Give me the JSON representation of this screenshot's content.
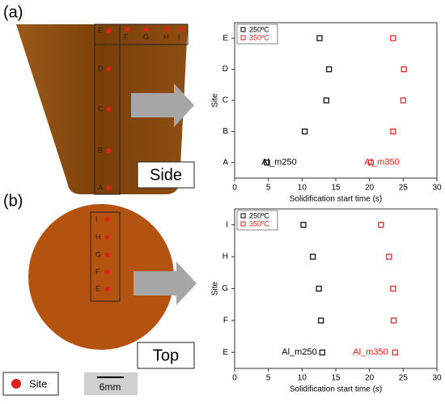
{
  "panels": {
    "a": "(a)",
    "b": "(b)"
  },
  "side_diagram": {
    "vertical_sites": [
      "E",
      "D",
      "C",
      "B",
      "A"
    ],
    "top_sites": [
      "F",
      "G",
      "H",
      "I"
    ],
    "view": "Side"
  },
  "top_diagram": {
    "sites": [
      "I",
      "H",
      "G",
      "F",
      "E"
    ],
    "view": "Top"
  },
  "legend": {
    "label": "Site"
  },
  "scale_bar": "6mm",
  "chart_data": [
    {
      "type": "scatter",
      "xlabel": "Solidification start time (s)",
      "ylabel": "Site",
      "categories": [
        "A",
        "B",
        "C",
        "D",
        "E"
      ],
      "series": [
        {
          "name": "250ºC",
          "color": "#000000",
          "values": [
            4.8,
            10.4,
            13.6,
            14.0,
            12.6
          ]
        },
        {
          "name": "350ºC",
          "color": "#e0201b",
          "values": [
            20.2,
            23.5,
            25.0,
            25.1,
            23.5
          ]
        }
      ],
      "annotations": [
        "Al_m250",
        "Al_m350"
      ],
      "xlim": [
        0,
        30
      ],
      "xticks": [
        0,
        5,
        10,
        15,
        20,
        25,
        30
      ],
      "legend": "upper left"
    },
    {
      "type": "scatter",
      "xlabel": "Solidification start time (s)",
      "ylabel": "Site",
      "categories": [
        "E",
        "F",
        "G",
        "H",
        "I"
      ],
      "series": [
        {
          "name": "250ºC",
          "color": "#000000",
          "values": [
            13.0,
            12.8,
            12.5,
            11.6,
            10.2
          ]
        },
        {
          "name": "350ºC",
          "color": "#e0201b",
          "values": [
            23.8,
            23.6,
            23.5,
            22.9,
            21.7
          ]
        }
      ],
      "annotations": [
        "Al_m250",
        "Al_m350"
      ],
      "xlim": [
        0,
        30
      ],
      "xticks": [
        0,
        5,
        10,
        15,
        20,
        25,
        30
      ],
      "legend": "upper left"
    }
  ]
}
